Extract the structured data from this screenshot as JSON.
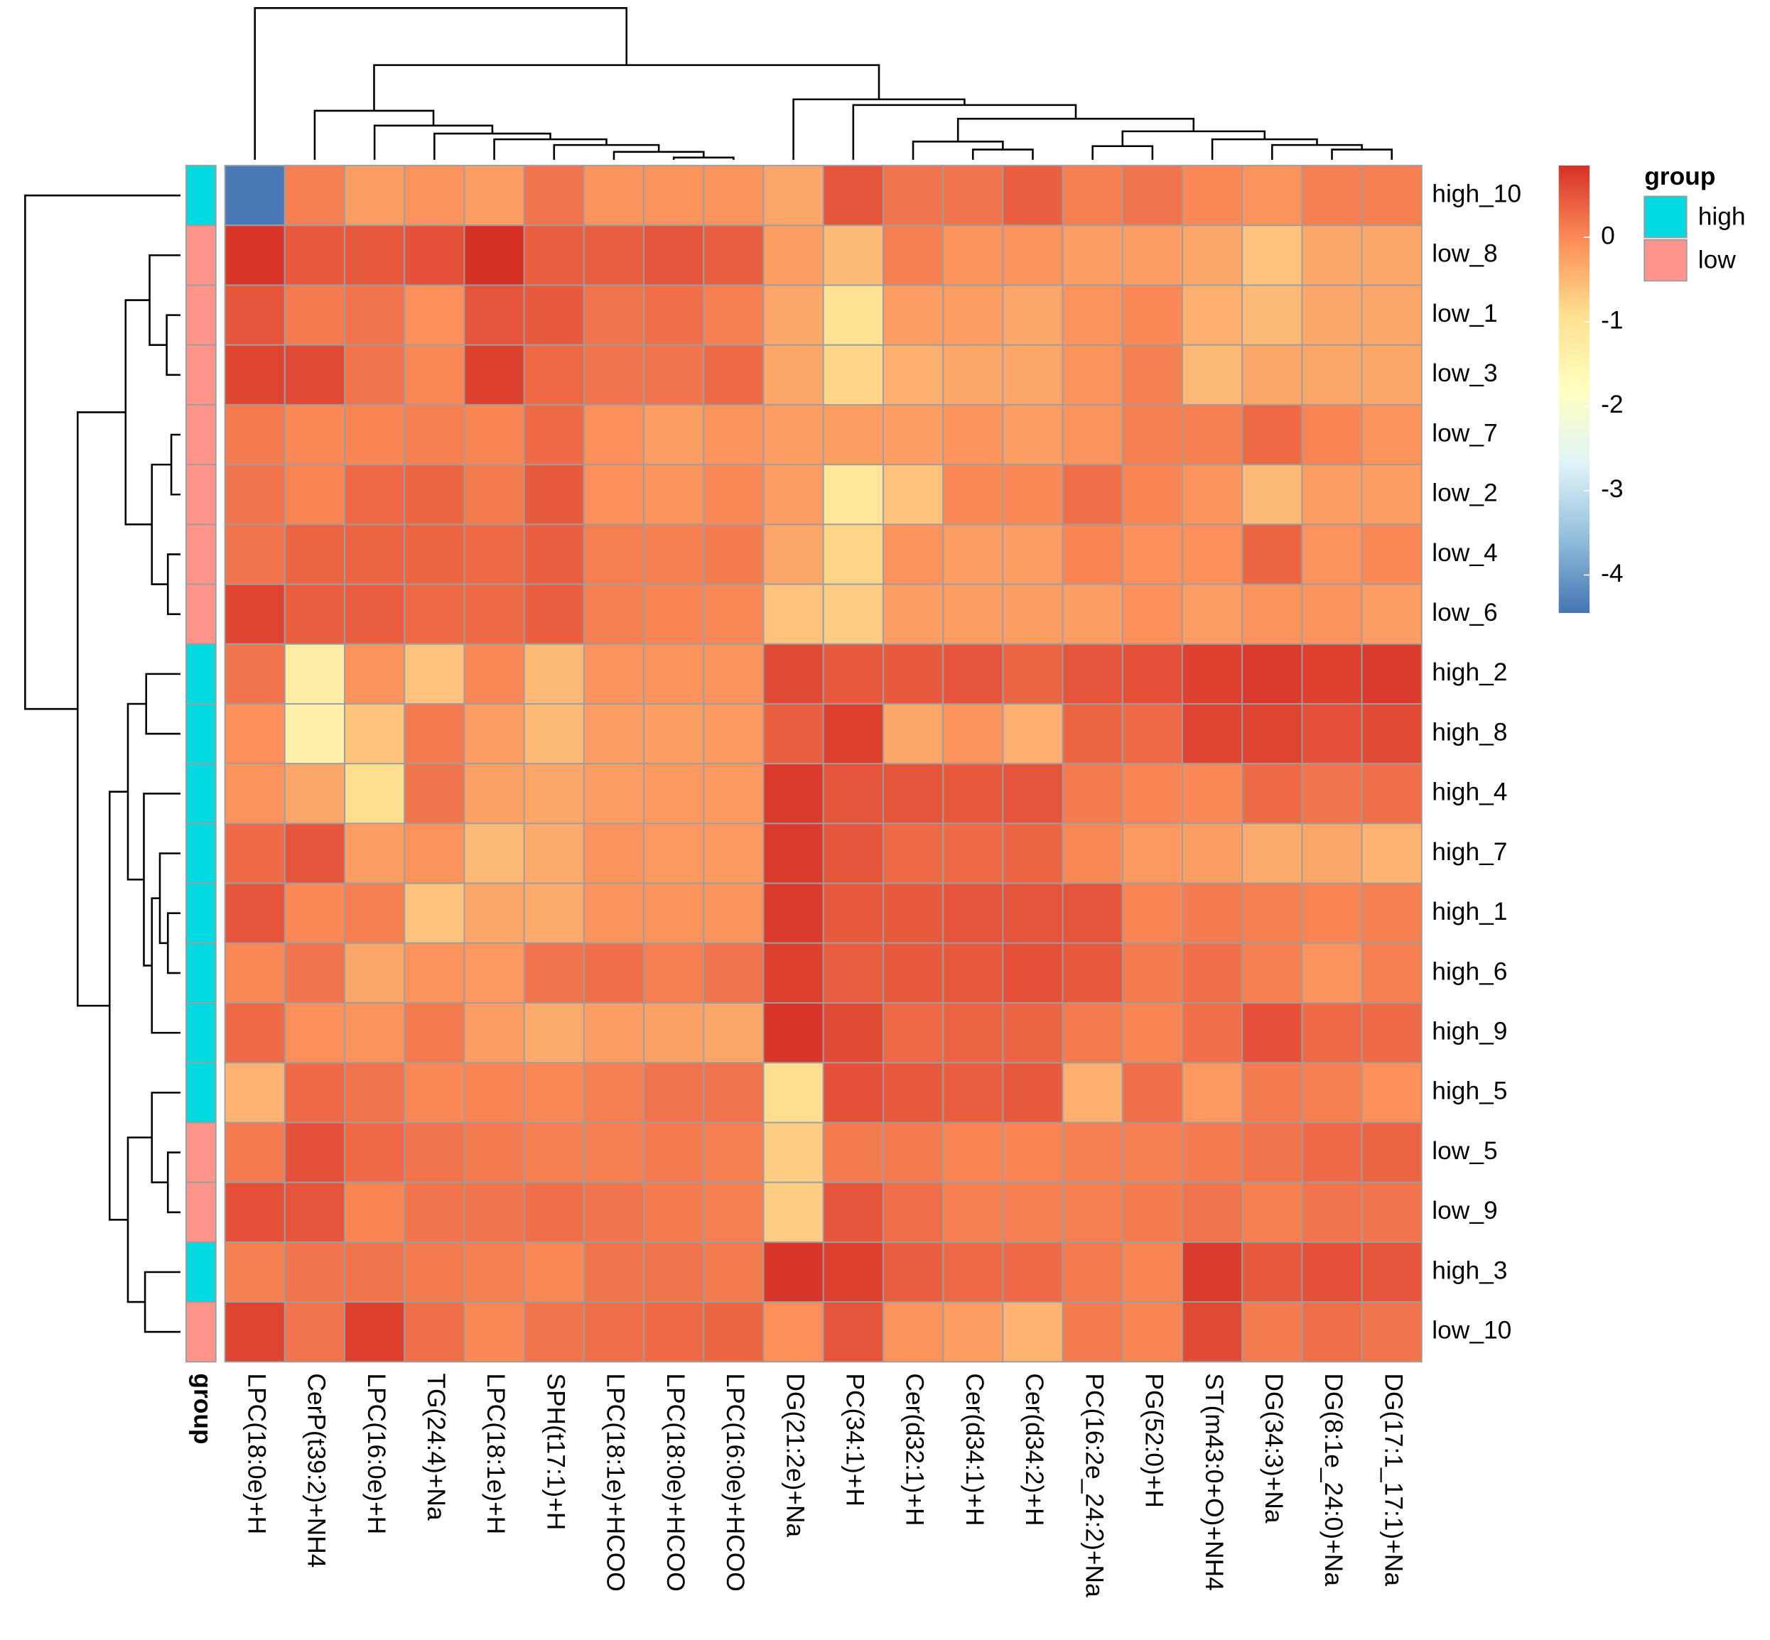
{
  "chart_data": {
    "type": "heatmap",
    "rows": [
      "high_10",
      "low_8",
      "low_1",
      "low_3",
      "low_7",
      "low_2",
      "low_4",
      "low_6",
      "high_2",
      "high_8",
      "high_4",
      "high_7",
      "high_1",
      "high_6",
      "high_9",
      "high_5",
      "low_5",
      "low_9",
      "high_3",
      "low_10"
    ],
    "columns": [
      "LPC(18:0e)+H",
      "CerP(t39:2)+NH4",
      "LPC(16:0e)+H",
      "TG(24:4)+Na",
      "LPC(18:1e)+H",
      "SPH(t17:1)+H",
      "LPC(18:1e)+HCOO",
      "LPC(18:0e)+HCOO",
      "LPC(16:0e)+HCOO",
      "DG(21:2e)+Na",
      "PC(34:1)+H",
      "Cer(d32:1)+H",
      "Cer(d34:1)+H",
      "Cer(d34:2)+H",
      "PC(16:2e_24:2)+Na",
      "PG(52:0)+H",
      "ST(m43:0+O)+NH4",
      "DG(34:3)+Na",
      "DG(8:1e_24:0)+Na",
      "DG(17:1_17:1)+Na"
    ],
    "values": [
      [
        -4.4,
        0.1,
        -0.2,
        -0.1,
        -0.2,
        0.2,
        -0.1,
        -0.1,
        -0.1,
        -0.3,
        0.5,
        0.2,
        0.2,
        0.4,
        0.1,
        0.2,
        0,
        -0.1,
        0.1,
        0.1
      ],
      [
        0.8,
        0.45,
        0.45,
        0.55,
        0.85,
        0.4,
        0.4,
        0.5,
        0.4,
        -0.2,
        -0.5,
        0.1,
        -0.1,
        -0.1,
        -0.2,
        -0.2,
        -0.3,
        -0.6,
        -0.3,
        -0.3
      ],
      [
        0.5,
        0.15,
        0.2,
        -0.05,
        0.5,
        0.45,
        0.2,
        0.25,
        0.1,
        -0.3,
        -1.0,
        -0.2,
        -0.2,
        -0.3,
        -0.1,
        0,
        -0.4,
        -0.5,
        -0.3,
        -0.3
      ],
      [
        0.65,
        0.6,
        0.2,
        0,
        0.7,
        0.3,
        0.2,
        0.2,
        0.3,
        -0.3,
        -0.8,
        -0.4,
        -0.3,
        -0.3,
        -0.1,
        0.1,
        -0.5,
        -0.3,
        -0.3,
        -0.3
      ],
      [
        0.15,
        0,
        0.05,
        0.1,
        0.05,
        0.3,
        -0.05,
        -0.2,
        -0.1,
        -0.2,
        -0.2,
        -0.2,
        -0.1,
        -0.2,
        -0.1,
        0.1,
        0.1,
        0.3,
        0.05,
        -0.1
      ],
      [
        0.2,
        0.05,
        0.3,
        0.35,
        0.15,
        0.45,
        -0.05,
        -0.1,
        0,
        -0.2,
        -1.1,
        -0.6,
        0,
        0,
        0.25,
        0.05,
        -0.1,
        -0.5,
        -0.2,
        -0.2
      ],
      [
        0.2,
        0.35,
        0.35,
        0.35,
        0.3,
        0.4,
        0.1,
        0.1,
        0.15,
        -0.3,
        -0.8,
        -0.1,
        -0.2,
        -0.2,
        0.05,
        -0.05,
        -0.05,
        0.35,
        -0.1,
        0
      ],
      [
        0.65,
        0.4,
        0.4,
        0.3,
        0.3,
        0.4,
        0.1,
        0.05,
        0,
        -0.6,
        -0.7,
        -0.2,
        -0.2,
        -0.2,
        -0.2,
        -0.05,
        -0.2,
        -0.1,
        -0.1,
        -0.2
      ],
      [
        0.2,
        -1.3,
        -0.1,
        -0.6,
        0,
        -0.5,
        -0.1,
        -0.1,
        -0.1,
        0.6,
        0.45,
        0.45,
        0.5,
        0.35,
        0.5,
        0.55,
        0.7,
        0.75,
        0.7,
        0.75
      ],
      [
        -0.05,
        -1.4,
        -0.6,
        0.15,
        -0.2,
        -0.5,
        -0.2,
        -0.2,
        -0.15,
        0.4,
        0.7,
        -0.3,
        -0.1,
        -0.4,
        0.35,
        0.3,
        0.65,
        0.65,
        0.55,
        0.6
      ],
      [
        -0.1,
        -0.3,
        -0.9,
        0.2,
        -0.25,
        -0.3,
        -0.2,
        -0.15,
        -0.15,
        0.75,
        0.5,
        0.5,
        0.45,
        0.5,
        0.15,
        0.05,
        0,
        0.3,
        0.2,
        0.25
      ],
      [
        0.3,
        0.5,
        -0.2,
        -0.1,
        -0.5,
        -0.35,
        -0.1,
        -0.15,
        -0.15,
        0.75,
        0.5,
        0.3,
        0.3,
        0.35,
        0,
        -0.15,
        -0.2,
        -0.35,
        -0.3,
        -0.45
      ],
      [
        0.5,
        0,
        0.1,
        -0.6,
        -0.3,
        -0.35,
        -0.1,
        -0.1,
        -0.1,
        0.75,
        0.45,
        0.45,
        0.5,
        0.5,
        0.5,
        0.05,
        0.15,
        0.1,
        0.05,
        0.1
      ],
      [
        0,
        0.2,
        -0.3,
        -0.1,
        -0.15,
        0.2,
        0.25,
        0.1,
        0.2,
        0.7,
        0.4,
        0.45,
        0.45,
        0.55,
        0.45,
        0.15,
        0.25,
        0.1,
        -0.1,
        0.1
      ],
      [
        0.3,
        -0.05,
        -0.1,
        0.15,
        -0.2,
        -0.35,
        -0.2,
        -0.25,
        -0.3,
        0.8,
        0.6,
        0.3,
        0.35,
        0.35,
        0.15,
        0.05,
        0.25,
        0.55,
        0.3,
        0.3
      ],
      [
        -0.45,
        0.3,
        0.2,
        0,
        0.05,
        0,
        0.1,
        0.2,
        0.2,
        -0.9,
        0.55,
        0.45,
        0.4,
        0.45,
        -0.4,
        0.25,
        -0.15,
        0.15,
        0.1,
        -0.05
      ],
      [
        0.15,
        0.55,
        0.3,
        0.2,
        0.15,
        0.1,
        0.1,
        0.15,
        0.1,
        -0.7,
        0.15,
        0.15,
        0.05,
        0.05,
        0.1,
        0.1,
        0.15,
        0.2,
        0.3,
        0.35
      ],
      [
        0.55,
        0.5,
        0.05,
        0.2,
        0.2,
        0.25,
        0.2,
        0.15,
        0.1,
        -0.7,
        0.5,
        0.25,
        0.1,
        0.1,
        0.1,
        0.15,
        0.2,
        0.1,
        0.2,
        0.2
      ],
      [
        0.1,
        0.2,
        0.2,
        0.15,
        0.1,
        0,
        0.2,
        0.2,
        0.15,
        0.8,
        0.7,
        0.4,
        0.3,
        0.3,
        0.15,
        0.05,
        0.75,
        0.45,
        0.55,
        0.5
      ],
      [
        0.65,
        0.2,
        0.7,
        0.25,
        0,
        0.2,
        0.25,
        0.3,
        0.35,
        -0.05,
        0.5,
        -0.1,
        -0.2,
        -0.45,
        0.15,
        0.05,
        0.6,
        0.15,
        0.25,
        0.2
      ]
    ],
    "zlim": [
      -4.45,
      0.85
    ],
    "zticks": [
      0,
      -1,
      -2,
      -3,
      -4
    ],
    "colors": [
      "#4575B4",
      "#91BFDB",
      "#E0F3F8",
      "#FFFFBF",
      "#FEE090",
      "#FC8D59",
      "#D73027"
    ],
    "cell_border": "#9E9E9E",
    "row_annotation": {
      "title": "group",
      "values": [
        "high",
        "low",
        "low",
        "low",
        "low",
        "low",
        "low",
        "low",
        "high",
        "high",
        "high",
        "high",
        "high",
        "high",
        "high",
        "high",
        "low",
        "low",
        "high",
        "low"
      ],
      "legend": [
        {
          "name": "high",
          "color": "#00DAE0"
        },
        {
          "name": "low",
          "color": "#FF948A"
        }
      ]
    }
  }
}
